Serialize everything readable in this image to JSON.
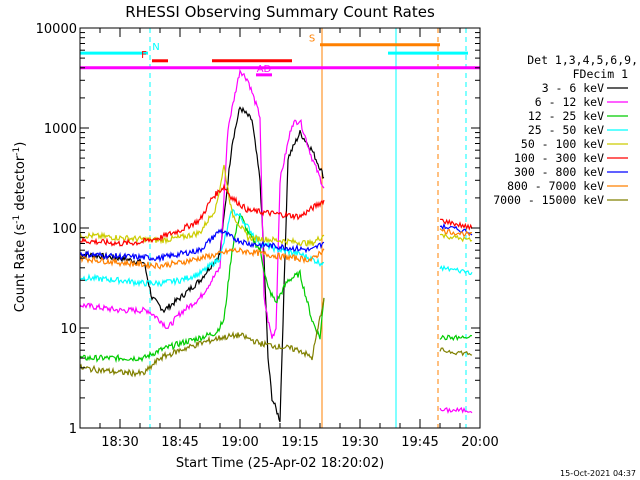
{
  "chart_data": {
    "type": "line",
    "title": "RHESSI Observing Summary Count Rates",
    "xlabel": "Start Time (25-Apr-02 18:20:02)",
    "ylabel_main": "Count Rate (s",
    "ylabel_sup": "-1",
    "ylabel_mid": " detector",
    "ylabel_sup2": "-1",
    "ylabel_end": ")",
    "y_scale": "log",
    "ylim": [
      1,
      10000
    ],
    "xlim_minutes": [
      0,
      100
    ],
    "x_ticks": [
      {
        "t": 10,
        "label": "18:30"
      },
      {
        "t": 25,
        "label": "18:45"
      },
      {
        "t": 40,
        "label": "19:00"
      },
      {
        "t": 55,
        "label": "19:15"
      },
      {
        "t": 70,
        "label": "19:30"
      },
      {
        "t": 85,
        "label": "19:45"
      },
      {
        "t": 100,
        "label": "20:00"
      }
    ],
    "y_ticks": [
      {
        "v": 1,
        "label": "1"
      },
      {
        "v": 10,
        "label": "10"
      },
      {
        "v": 100,
        "label": "100"
      },
      {
        "v": 1000,
        "label": "1000"
      },
      {
        "v": 10000,
        "label": "10000"
      }
    ],
    "legend": {
      "header1": "Det 1,3,4,5,6,9,",
      "header2": "FDecim 1",
      "position": "right"
    },
    "series": [
      {
        "name": "3 - 6 keV",
        "color": "#000000",
        "points": [
          [
            0,
            55
          ],
          [
            10,
            50
          ],
          [
            16,
            45
          ],
          [
            18,
            20
          ],
          [
            21,
            15
          ],
          [
            25,
            20
          ],
          [
            30,
            30
          ],
          [
            35,
            55
          ],
          [
            38,
            700
          ],
          [
            40,
            1600
          ],
          [
            43,
            1200
          ],
          [
            45,
            300
          ],
          [
            46,
            50
          ],
          [
            47,
            5
          ],
          [
            48,
            2
          ],
          [
            50,
            1.2
          ],
          [
            52,
            500
          ],
          [
            55,
            900
          ],
          [
            58,
            600
          ],
          [
            60,
            400
          ],
          [
            61,
            320
          ]
        ]
      },
      {
        "name": "6 - 12 keV",
        "color": "#ff00ff",
        "points": [
          [
            0,
            17
          ],
          [
            10,
            15
          ],
          [
            17,
            15
          ],
          [
            20,
            12
          ],
          [
            22,
            10
          ],
          [
            25,
            14
          ],
          [
            30,
            20
          ],
          [
            35,
            40
          ],
          [
            37,
            1000
          ],
          [
            40,
            3800
          ],
          [
            42,
            3000
          ],
          [
            45,
            1300
          ],
          [
            46,
            20
          ],
          [
            47,
            12
          ],
          [
            48,
            8
          ],
          [
            49,
            10
          ],
          [
            50,
            300
          ],
          [
            53,
            1100
          ],
          [
            55,
            1200
          ],
          [
            58,
            500
          ],
          [
            61,
            250
          ]
        ]
      },
      {
        "name": "12 - 25 keV",
        "color": "#00cc00",
        "points": [
          [
            0,
            5
          ],
          [
            10,
            5
          ],
          [
            16,
            5
          ],
          [
            18,
            5.5
          ],
          [
            20,
            6
          ],
          [
            25,
            7
          ],
          [
            30,
            8
          ],
          [
            34,
            9
          ],
          [
            36,
            12
          ],
          [
            38,
            60
          ],
          [
            40,
            140
          ],
          [
            42,
            90
          ],
          [
            45,
            60
          ],
          [
            47,
            25
          ],
          [
            49,
            18
          ],
          [
            52,
            30
          ],
          [
            55,
            35
          ],
          [
            58,
            12
          ],
          [
            60,
            8
          ],
          [
            61,
            20
          ]
        ]
      },
      {
        "name": "25 - 50 keV",
        "color": "#00ffff",
        "points": [
          [
            0,
            32
          ],
          [
            10,
            30
          ],
          [
            16,
            28
          ],
          [
            20,
            28
          ],
          [
            25,
            30
          ],
          [
            30,
            35
          ],
          [
            35,
            50
          ],
          [
            38,
            150
          ],
          [
            40,
            130
          ],
          [
            45,
            70
          ],
          [
            50,
            60
          ],
          [
            55,
            55
          ],
          [
            60,
            45
          ],
          [
            61,
            45
          ]
        ]
      },
      {
        "name": "50 - 100 keV",
        "color": "#cccc00",
        "points": [
          [
            0,
            85
          ],
          [
            10,
            80
          ],
          [
            20,
            75
          ],
          [
            25,
            80
          ],
          [
            30,
            90
          ],
          [
            34,
            160
          ],
          [
            36,
            420
          ],
          [
            38,
            140
          ],
          [
            42,
            80
          ],
          [
            50,
            75
          ],
          [
            58,
            70
          ],
          [
            61,
            85
          ]
        ]
      },
      {
        "name": "100 - 300 keV",
        "color": "#ff0000",
        "points": [
          [
            0,
            75
          ],
          [
            10,
            70
          ],
          [
            15,
            72
          ],
          [
            20,
            80
          ],
          [
            25,
            95
          ],
          [
            30,
            120
          ],
          [
            33,
            200
          ],
          [
            36,
            260
          ],
          [
            38,
            200
          ],
          [
            42,
            150
          ],
          [
            48,
            140
          ],
          [
            55,
            130
          ],
          [
            61,
            190
          ]
        ]
      },
      {
        "name": "300 - 800 keV",
        "color": "#0000ff",
        "points": [
          [
            0,
            55
          ],
          [
            10,
            52
          ],
          [
            20,
            50
          ],
          [
            25,
            55
          ],
          [
            30,
            60
          ],
          [
            35,
            95
          ],
          [
            38,
            80
          ],
          [
            42,
            70
          ],
          [
            50,
            65
          ],
          [
            58,
            60
          ],
          [
            61,
            72
          ]
        ]
      },
      {
        "name": "800 - 7000 keV",
        "color": "#ff8000",
        "points": [
          [
            0,
            50
          ],
          [
            10,
            45
          ],
          [
            20,
            42
          ],
          [
            25,
            45
          ],
          [
            30,
            50
          ],
          [
            35,
            55
          ],
          [
            38,
            60
          ],
          [
            42,
            58
          ],
          [
            50,
            52
          ],
          [
            58,
            48
          ],
          [
            61,
            62
          ]
        ]
      },
      {
        "name": "7000 - 15000 keV",
        "color": "#808000",
        "points": [
          [
            0,
            4
          ],
          [
            10,
            3.6
          ],
          [
            16,
            3.5
          ],
          [
            20,
            5
          ],
          [
            25,
            6
          ],
          [
            30,
            7
          ],
          [
            35,
            8
          ],
          [
            40,
            8.5
          ],
          [
            45,
            7
          ],
          [
            50,
            6.5
          ],
          [
            55,
            6
          ],
          [
            58,
            5
          ],
          [
            61,
            20
          ]
        ]
      }
    ],
    "segment2": {
      "description": "",
      "start_t": 90,
      "end_t": 98,
      "values": {
        "100 - 300 keV": [
          120,
          100
        ],
        "25 - 50 keV": [
          40,
          36
        ],
        "50 - 100 keV": [
          85,
          75
        ],
        "800 - 7000 keV": [
          95,
          85
        ],
        "300 - 800 keV": [
          105,
          90
        ],
        "12 - 25 keV": [
          8,
          8
        ],
        "7000 - 15000 keV": [
          6,
          5.5
        ],
        "6 - 12 keV": [
          1.5,
          1.5
        ]
      }
    },
    "flag_bars": [
      {
        "label": "N",
        "color": "#00ffff",
        "level": 5600,
        "ranges": [
          [
            0,
            17
          ],
          [
            77,
            97
          ]
        ],
        "label_t": 19
      },
      {
        "label": "F",
        "color": "#ff0000",
        "level": 4700,
        "ranges": [
          [
            18,
            22
          ]
        ],
        "label_t": 16
      },
      {
        "label": "",
        "color": "#ff0000",
        "level": 4700,
        "ranges": [
          [
            33,
            53
          ]
        ],
        "label_t": null
      },
      {
        "label": "AD",
        "color": "#ff00ff",
        "level": 3400,
        "ranges": [
          [
            44,
            48
          ]
        ],
        "label_t": 46
      },
      {
        "label": "",
        "color": "#ff00ff",
        "level": 4000,
        "ranges": [
          [
            0,
            100
          ]
        ],
        "label_t": null
      },
      {
        "label": "S",
        "color": "#ff8000",
        "level": 6800,
        "ranges": [
          [
            60,
            90
          ]
        ],
        "label_t": 58
      }
    ],
    "vlines": [
      {
        "t": 0,
        "color": "#00ffff",
        "dash": false
      },
      {
        "t": 17.5,
        "color": "#00ffff",
        "dash": true
      },
      {
        "t": 60.5,
        "color": "#ff8000",
        "dash": false
      },
      {
        "t": 79,
        "color": "#00ffff",
        "dash": false
      },
      {
        "t": 89.5,
        "color": "#ff8000",
        "dash": true
      },
      {
        "t": 96.5,
        "color": "#00ffff",
        "dash": true
      }
    ],
    "grid": false
  },
  "footer": {
    "stamp": "15-Oct-2021 04:37"
  }
}
